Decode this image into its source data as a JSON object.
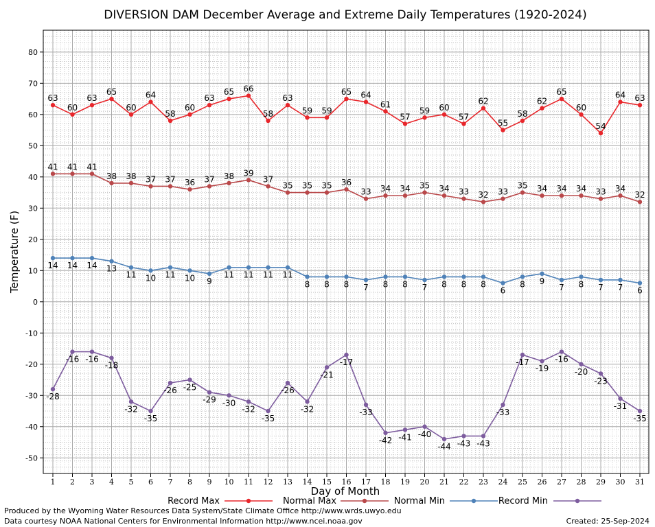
{
  "chart_data": {
    "type": "line",
    "title": "DIVERSION DAM December Average and Extreme Daily Temperatures (1920-2024)",
    "xlabel": "Day of Month",
    "ylabel": "Temperature (F)",
    "ylim": [
      -55,
      87
    ],
    "yticks": [
      80,
      70,
      60,
      50,
      40,
      30,
      20,
      10,
      0,
      -10,
      -20,
      -30,
      -40,
      -50
    ],
    "x": [
      1,
      2,
      3,
      4,
      5,
      6,
      7,
      8,
      9,
      10,
      11,
      12,
      13,
      14,
      15,
      16,
      17,
      18,
      19,
      20,
      21,
      22,
      23,
      24,
      25,
      26,
      27,
      28,
      29,
      30,
      31
    ],
    "grid": true,
    "legend_position": "bottom",
    "series": [
      {
        "name": "Record Max",
        "color": "#e8262b",
        "label_pos": "above",
        "values": [
          63,
          60,
          63,
          65,
          60,
          64,
          58,
          60,
          63,
          65,
          66,
          58,
          63,
          59,
          59,
          65,
          64,
          61,
          57,
          59,
          60,
          57,
          62,
          55,
          58,
          62,
          65,
          60,
          54,
          64,
          63
        ]
      },
      {
        "name": "Normal Max",
        "color": "#b9484a",
        "label_pos": "above",
        "values": [
          41,
          41,
          41,
          38,
          38,
          37,
          37,
          36,
          37,
          38,
          39,
          37,
          35,
          35,
          35,
          36,
          33,
          34,
          34,
          35,
          34,
          33,
          32,
          33,
          35,
          34,
          34,
          34,
          33,
          34,
          32
        ]
      },
      {
        "name": "Normal Min",
        "color": "#4f82b8",
        "label_pos": "below",
        "values": [
          14,
          14,
          14,
          13,
          11,
          10,
          11,
          10,
          9,
          11,
          11,
          11,
          11,
          8,
          8,
          8,
          7,
          8,
          8,
          7,
          8,
          8,
          8,
          6,
          8,
          9,
          7,
          8,
          7,
          7,
          6
        ]
      },
      {
        "name": "Record Min",
        "color": "#7d5c9e",
        "label_pos": "below",
        "values": [
          -28,
          -16,
          -16,
          -18,
          -32,
          -35,
          -26,
          -25,
          -29,
          -30,
          -32,
          -35,
          -26,
          -32,
          -21,
          -17,
          -33,
          -42,
          -41,
          -40,
          -44,
          -43,
          -43,
          -33,
          -17,
          -19,
          -16,
          -20,
          -23,
          -31,
          -35
        ]
      }
    ]
  },
  "footer": {
    "produced_by": "Produced by the Wyoming Water Resources Data System/State Climate Office http://www.wrds.uwyo.edu",
    "data_courtesy": "Data courtesy NOAA National Centers for Environmental Information http://www.ncei.noaa.gov",
    "created": "Created:  25-Sep-2024"
  }
}
